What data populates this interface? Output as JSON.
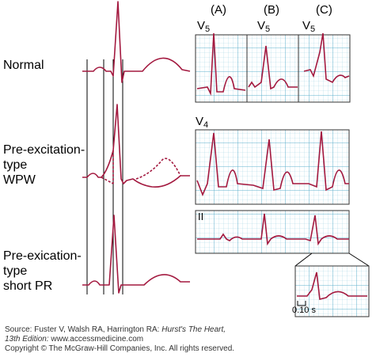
{
  "labels": {
    "normal": "Normal",
    "wpw_line1": "Pre-excitation-",
    "wpw_line2": "type",
    "wpw_line3": "WPW",
    "short_line1": "Pre-exication-",
    "short_line2": "type",
    "short_line3": "short PR"
  },
  "panels": {
    "a": "(A)",
    "b": "(B)",
    "c": "(C)"
  },
  "leads": {
    "v5_base": "V",
    "v5_sub": "5",
    "v4_base": "V",
    "v4_sub": "4",
    "ii": "II"
  },
  "scale_label": "0.10 s",
  "source": {
    "line1_prefix": "Source: Fuster V, Walsh RA, Harrington RA: ",
    "line1_title": "Hurst's The Heart,",
    "line2_edition": "13th Edition: ",
    "line2_url": "www.accessmedicine.com",
    "line3": "Copyright © The McGraw-Hill Companies, Inc. All rights reserved."
  },
  "colors": {
    "trace": "#a3193f",
    "grid_minor": "#a9d8e6",
    "grid_major": "#5fb0cc",
    "grid_bg": "#ffffff"
  }
}
